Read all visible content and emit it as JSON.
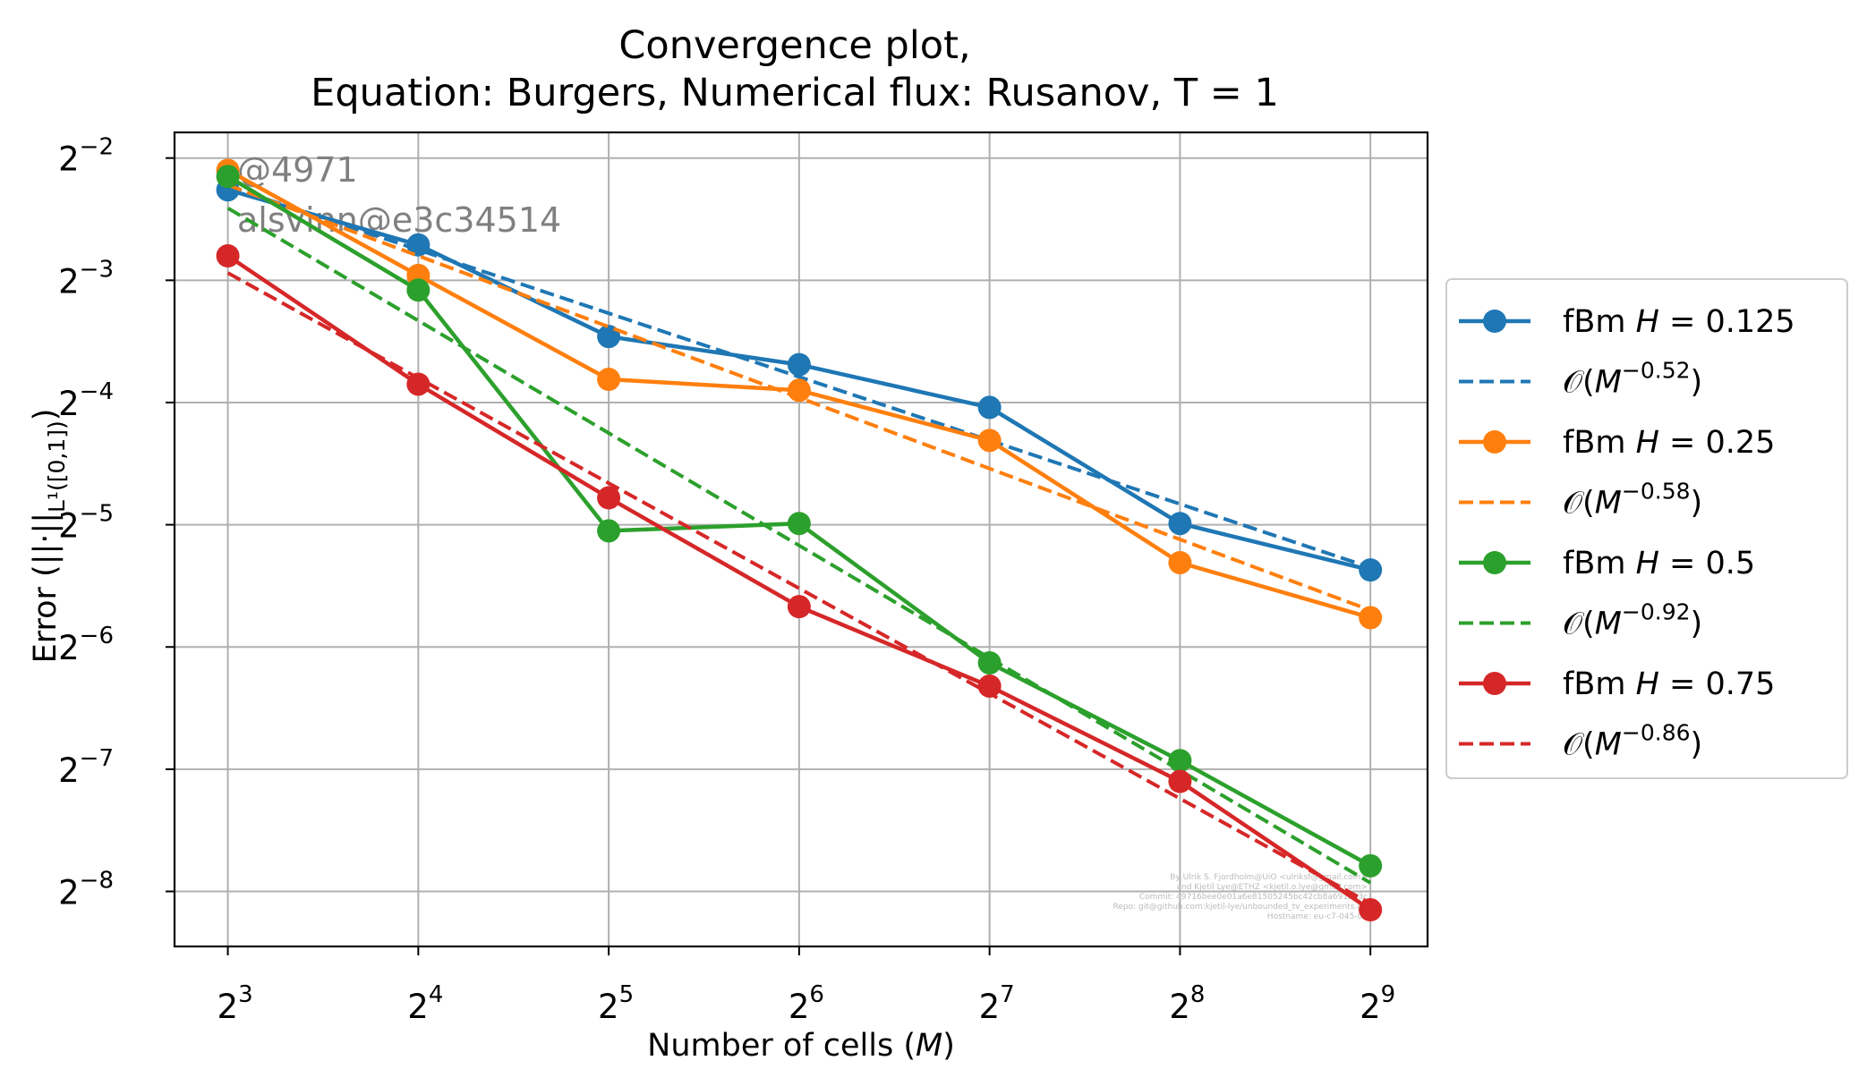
{
  "chart_data": {
    "type": "line",
    "title_lines": [
      "Convergence plot,",
      "Equation: Burgers, Numerical flux: Rusanov, T = 1"
    ],
    "xlabel": "Number of cells (M)",
    "ylabel": "Error (||·||_{L¹([0,1])})",
    "x_scale": "log2",
    "y_scale": "log2",
    "x": [
      8,
      16,
      32,
      64,
      128,
      256,
      512
    ],
    "x_ticks": [
      {
        "base": "2",
        "exp": "3"
      },
      {
        "base": "2",
        "exp": "4"
      },
      {
        "base": "2",
        "exp": "5"
      },
      {
        "base": "2",
        "exp": "6"
      },
      {
        "base": "2",
        "exp": "7"
      },
      {
        "base": "2",
        "exp": "8"
      },
      {
        "base": "2",
        "exp": "9"
      }
    ],
    "y_ticks": [
      {
        "base": "2",
        "exp": "−2"
      },
      {
        "base": "2",
        "exp": "−3"
      },
      {
        "base": "2",
        "exp": "−4"
      },
      {
        "base": "2",
        "exp": "−5"
      },
      {
        "base": "2",
        "exp": "−6"
      },
      {
        "base": "2",
        "exp": "−7"
      },
      {
        "base": "2",
        "exp": "−8"
      }
    ],
    "y_exponent_range": [
      -8.45,
      -1.79
    ],
    "x_exponent_range": [
      2.72,
      9.3
    ],
    "grid": true,
    "legend_position": "outside right",
    "series": [
      {
        "name": "fBm H = 0.125",
        "style": "solid-marker",
        "color": "#1f77b4",
        "log2_y": [
          -2.26,
          -2.71,
          -3.46,
          -3.69,
          -4.04,
          -4.99,
          -5.37
        ]
      },
      {
        "name": "𝒪(M^−0.52)",
        "style": "dashed",
        "color": "#1f77b4",
        "log2_y": [
          -2.23,
          -2.75,
          -3.27,
          -3.79,
          -4.31,
          -4.83,
          -5.35
        ]
      },
      {
        "name": "fBm H = 0.25",
        "style": "solid-marker",
        "color": "#ff7f0e",
        "log2_y": [
          -2.1,
          -2.96,
          -3.81,
          -3.9,
          -4.31,
          -5.31,
          -5.76
        ]
      },
      {
        "name": "𝒪(M^−0.58)",
        "style": "dashed",
        "color": "#ff7f0e",
        "log2_y": [
          -2.22,
          -2.8,
          -3.38,
          -3.96,
          -4.54,
          -5.12,
          -5.7
        ]
      },
      {
        "name": "fBm H = 0.5",
        "style": "solid-marker",
        "color": "#2ca02c",
        "log2_y": [
          -2.15,
          -3.08,
          -5.05,
          -4.99,
          -6.13,
          -6.93,
          -7.79
        ]
      },
      {
        "name": "𝒪(M^−0.92)",
        "style": "dashed",
        "color": "#2ca02c",
        "log2_y": [
          -2.41,
          -3.33,
          -4.25,
          -5.17,
          -6.09,
          -7.01,
          -7.93
        ]
      },
      {
        "name": "fBm H = 0.75",
        "style": "solid-marker",
        "color": "#d62728",
        "log2_y": [
          -2.8,
          -3.85,
          -4.78,
          -5.67,
          -6.32,
          -7.1,
          -8.15
        ]
      },
      {
        "name": "𝒪(M^−0.86)",
        "style": "dashed",
        "color": "#d62728",
        "log2_y": [
          -2.94,
          -3.8,
          -4.66,
          -5.52,
          -6.38,
          -7.24,
          -8.1
        ]
      }
    ],
    "legend": [
      {
        "prefix": "fBm ",
        "var": "H",
        "suffix": " = 0.125",
        "style": "solid-marker",
        "color": "#1f77b4"
      },
      {
        "prefix": "𝒪(",
        "var": "M",
        "sup": "−0.52",
        "suffix": ")",
        "style": "dashed",
        "color": "#1f77b4"
      },
      {
        "prefix": "fBm ",
        "var": "H",
        "suffix": " = 0.25",
        "style": "solid-marker",
        "color": "#ff7f0e"
      },
      {
        "prefix": "𝒪(",
        "var": "M",
        "sup": "−0.58",
        "suffix": ")",
        "style": "dashed",
        "color": "#ff7f0e"
      },
      {
        "prefix": "fBm ",
        "var": "H",
        "suffix": " = 0.5",
        "style": "solid-marker",
        "color": "#2ca02c"
      },
      {
        "prefix": "𝒪(",
        "var": "M",
        "sup": "−0.92",
        "suffix": ")",
        "style": "dashed",
        "color": "#2ca02c"
      },
      {
        "prefix": "fBm ",
        "var": "H",
        "suffix": " = 0.75",
        "style": "solid-marker",
        "color": "#d62728"
      },
      {
        "prefix": "𝒪(",
        "var": "M",
        "sup": "−0.86",
        "suffix": ")",
        "style": "dashed",
        "color": "#d62728"
      }
    ],
    "annotations": [
      "@4971",
      "alsvinn@e3c34514"
    ],
    "credits": [
      "By Ulrik S. Fjordholm@UiO <ulriksf@gmail.com>",
      "and Kjetil Lye@ETHZ <kjetil.o.lye@gmail.com>",
      "Commit: 49716bee0e01a6e81505245bc42cb8a691e83c",
      "Repo: git@github.com:kjetil-lye/unbounded_tv_experiments.git",
      "Hostname: eu-c7-045-08"
    ]
  }
}
